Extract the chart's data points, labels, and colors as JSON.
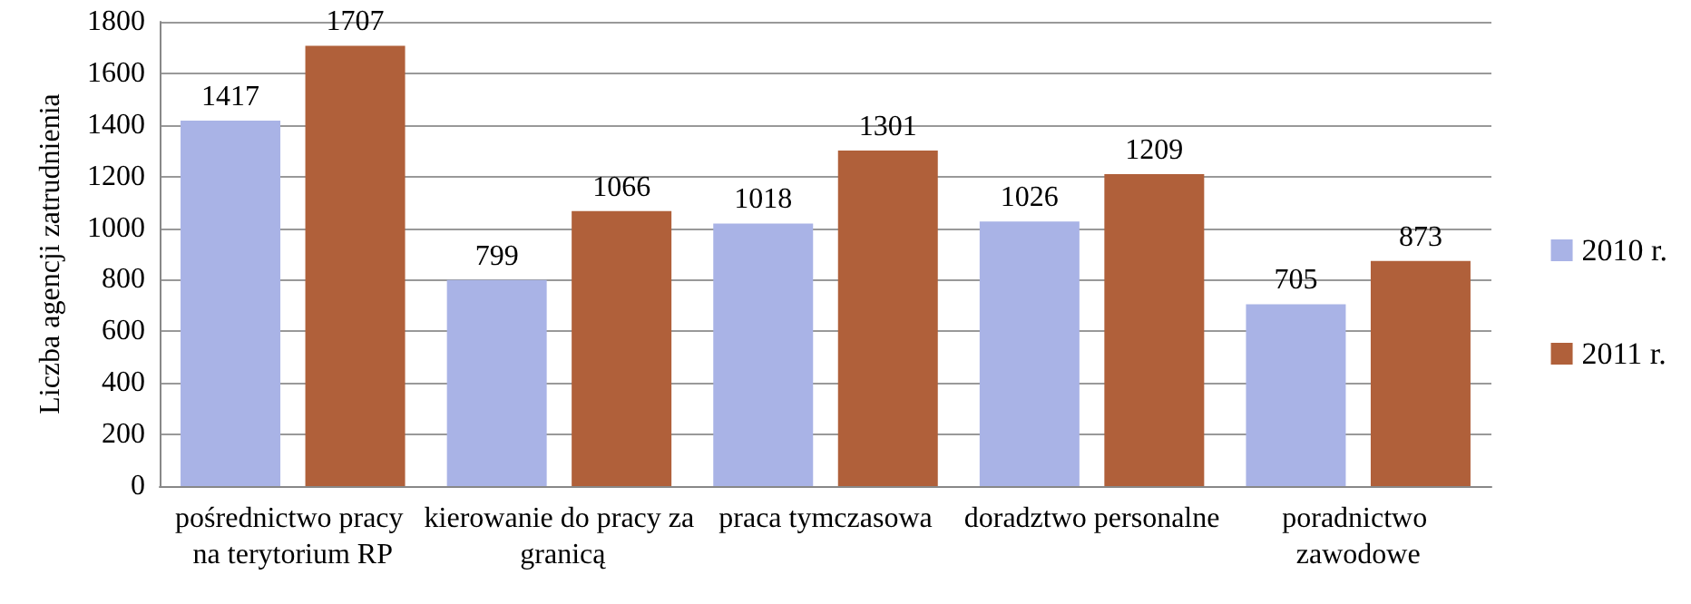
{
  "chart_data": {
    "type": "bar",
    "ylabel": "Liczba agencji zatrudnienia",
    "categories": [
      "pośrednictwo pracy na terytorium RP",
      "kierowanie do pracy za granicą",
      "praca tymczasowa",
      "doradztwo personalne",
      "poradnictwo zawodowe"
    ],
    "series": [
      {
        "name": "2010 r.",
        "color": "#a9b3e6",
        "values": [
          1417,
          799,
          1018,
          1026,
          705
        ]
      },
      {
        "name": "2011 r.",
        "color": "#b0603a",
        "values": [
          1707,
          1066,
          1301,
          1209,
          873
        ]
      }
    ],
    "ylim": [
      0,
      1800
    ],
    "yticks": [
      0,
      200,
      400,
      600,
      800,
      1000,
      1200,
      1400,
      1600,
      1800
    ],
    "grid": "y",
    "legend": "right",
    "data_labels": true
  }
}
